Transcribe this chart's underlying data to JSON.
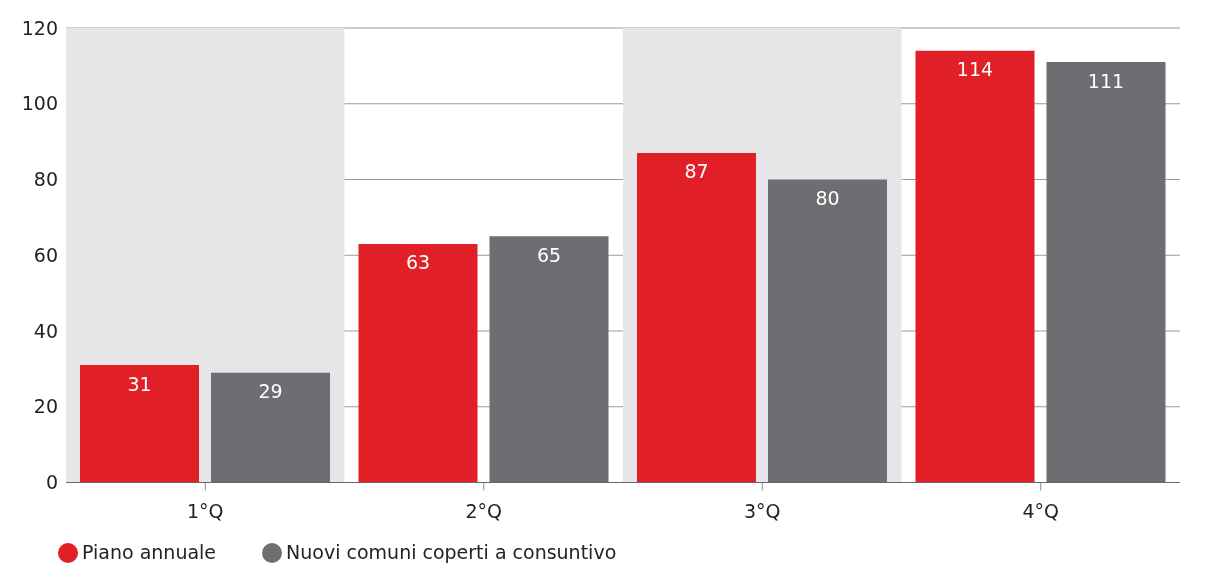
{
  "chart_data": {
    "type": "bar",
    "categories": [
      "1°Q",
      "2°Q",
      "3°Q",
      "4°Q"
    ],
    "series": [
      {
        "name": "Piano annuale",
        "color": "#e01f26",
        "values": [
          31,
          63,
          87,
          114
        ]
      },
      {
        "name": "Nuovi comuni coperti a consuntivo",
        "color": "#6d6e71",
        "values": [
          29,
          65,
          80,
          111
        ]
      }
    ],
    "ylim": [
      0,
      120
    ],
    "yticks": [
      0,
      20,
      40,
      60,
      80,
      100,
      120
    ],
    "grid": "y",
    "legend": "bottom left",
    "data_labels": true,
    "bands": [
      {
        "axis": "x",
        "from": "1°Q",
        "to": "1°Q",
        "color": "#e6e6e8"
      },
      {
        "axis": "x",
        "from": "3°Q",
        "to": "3°Q",
        "color": "#e6e6e8"
      }
    ]
  }
}
